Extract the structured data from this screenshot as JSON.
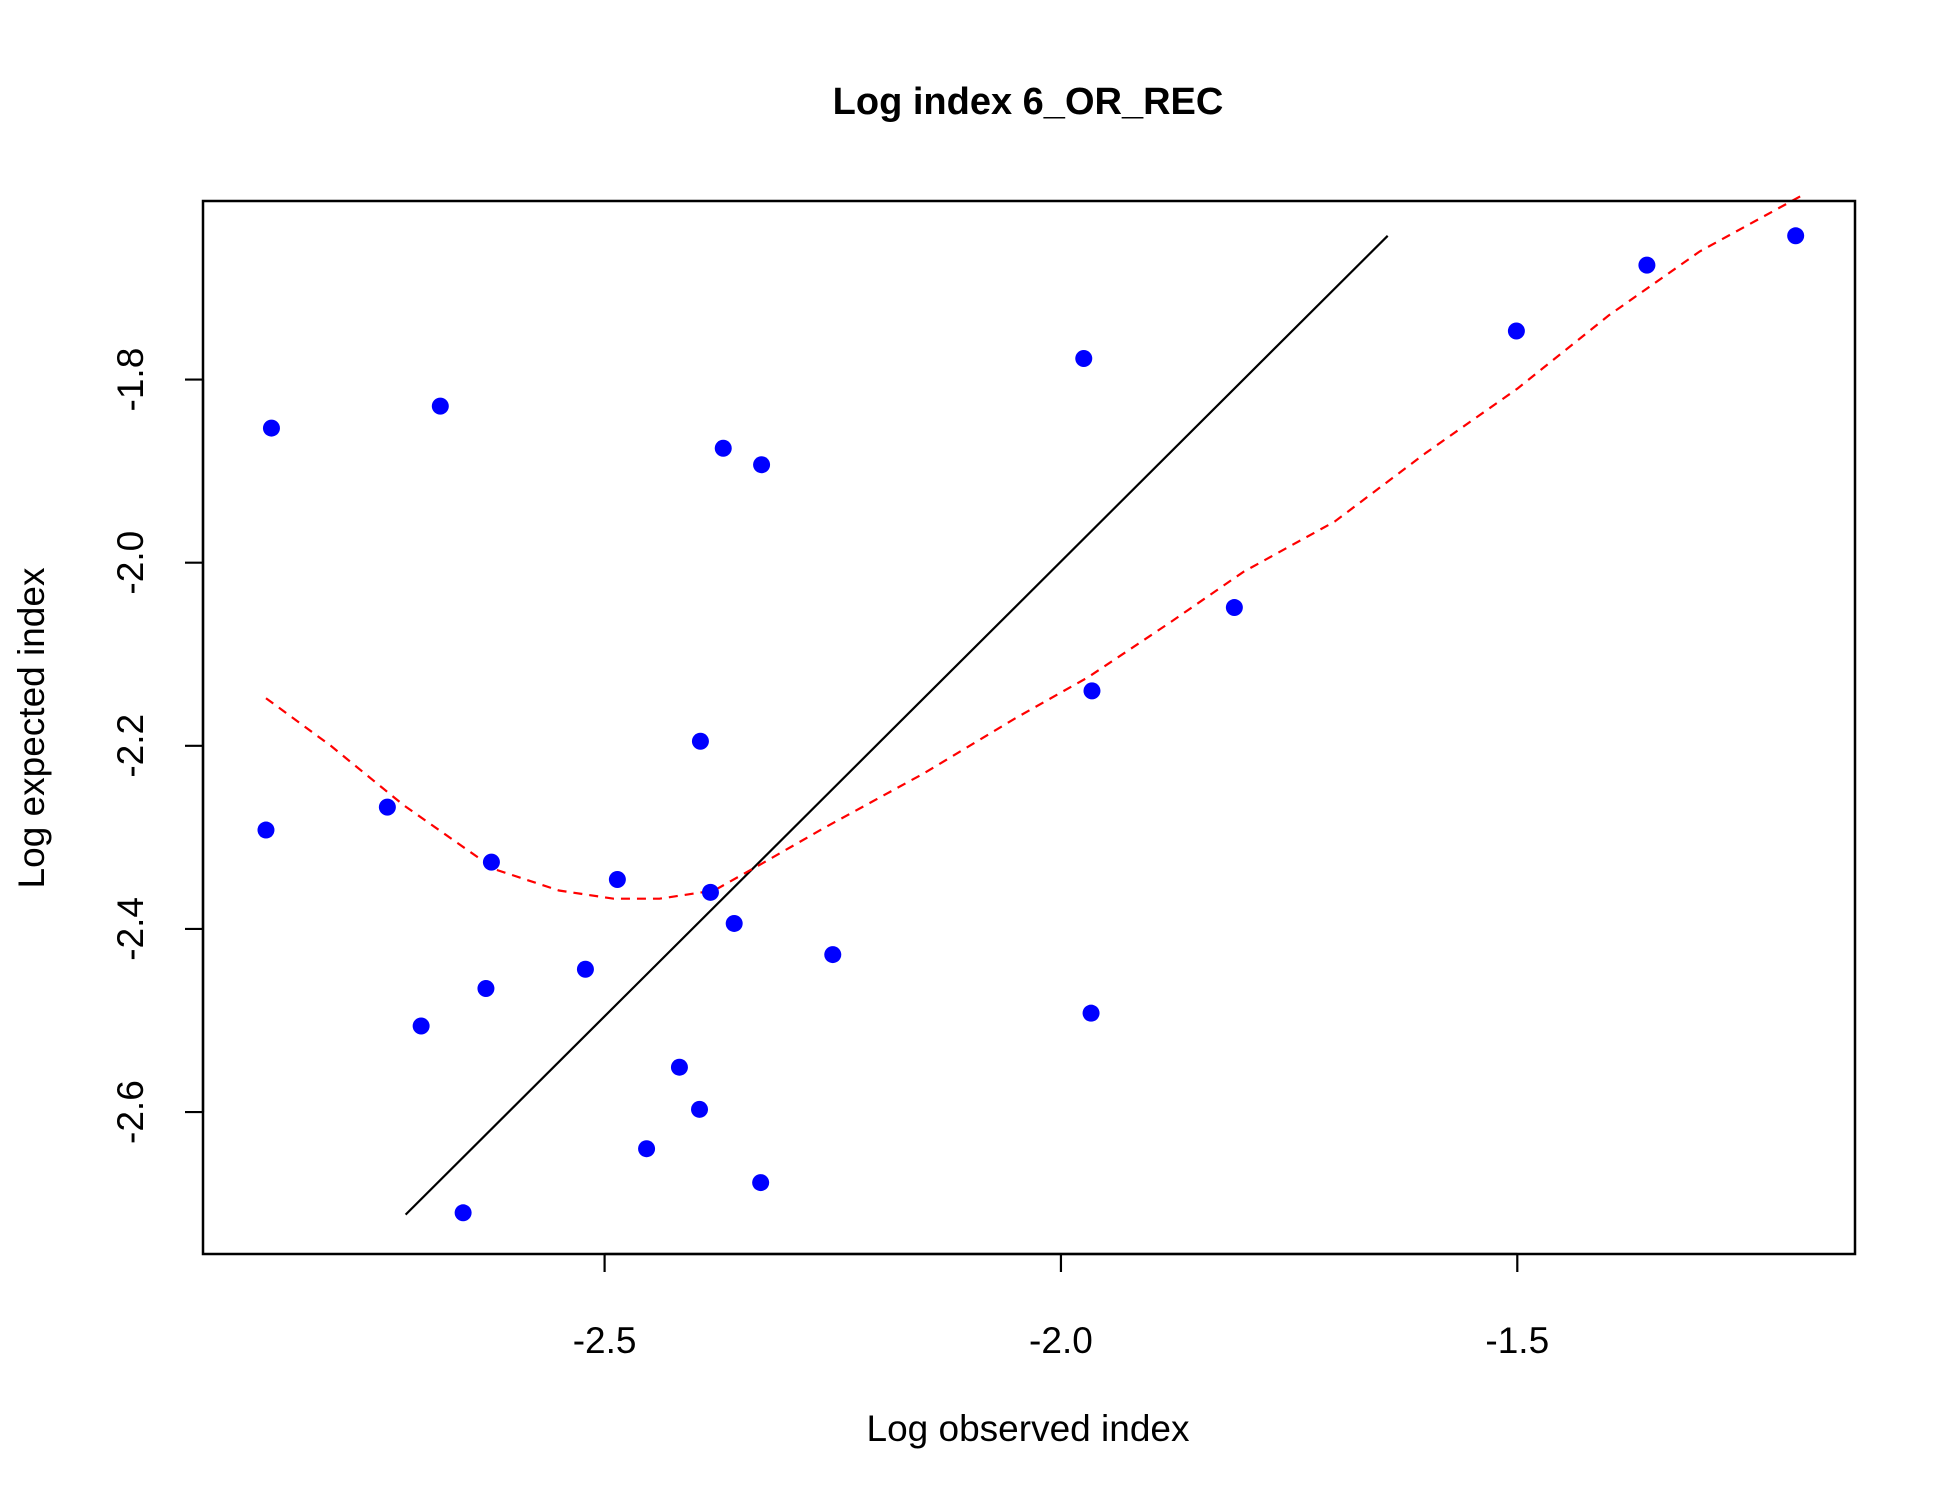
{
  "chart_data": {
    "type": "scatter",
    "title": "Log index 6_OR_REC",
    "xlabel": "Log observed index",
    "ylabel": "Log expected index",
    "xlim": [
      -2.94,
      -1.13
    ],
    "ylim": [
      -2.755,
      -1.605
    ],
    "x_ticks": [
      -2.5,
      -2.0,
      -1.5
    ],
    "x_tick_labels": [
      "-2.5",
      "-2.0",
      "-1.5"
    ],
    "y_ticks": [
      -2.6,
      -2.4,
      -2.2,
      -2.0,
      -1.8
    ],
    "y_tick_labels": [
      "-2.6",
      "-2.4",
      "-2.2",
      "-2.0",
      "-1.8"
    ],
    "grid": false,
    "legend": "none",
    "point_color": "#0000FF",
    "points": [
      {
        "x": -2.865,
        "y": -1.853
      },
      {
        "x": -2.68,
        "y": -1.829
      },
      {
        "x": -2.37,
        "y": -1.875
      },
      {
        "x": -2.328,
        "y": -1.893
      },
      {
        "x": -1.975,
        "y": -1.777
      },
      {
        "x": -1.501,
        "y": -1.747
      },
      {
        "x": -1.358,
        "y": -1.675
      },
      {
        "x": -1.195,
        "y": -1.643
      },
      {
        "x": -1.81,
        "y": -2.049
      },
      {
        "x": -1.966,
        "y": -2.14
      },
      {
        "x": -2.395,
        "y": -2.195
      },
      {
        "x": -2.871,
        "y": -2.292
      },
      {
        "x": -2.738,
        "y": -2.267
      },
      {
        "x": -2.624,
        "y": -2.327
      },
      {
        "x": -2.486,
        "y": -2.346
      },
      {
        "x": -2.384,
        "y": -2.36
      },
      {
        "x": -2.358,
        "y": -2.394
      },
      {
        "x": -2.25,
        "y": -2.428
      },
      {
        "x": -2.521,
        "y": -2.444
      },
      {
        "x": -2.63,
        "y": -2.465
      },
      {
        "x": -2.701,
        "y": -2.506
      },
      {
        "x": -1.967,
        "y": -2.492
      },
      {
        "x": -2.418,
        "y": -2.551
      },
      {
        "x": -2.396,
        "y": -2.597
      },
      {
        "x": -2.454,
        "y": -2.64
      },
      {
        "x": -2.329,
        "y": -2.677
      },
      {
        "x": -2.655,
        "y": -2.71
      }
    ],
    "identity_line": {
      "color": "#000000",
      "x": [
        -2.718,
        -1.642
      ],
      "y": [
        -2.712,
        -1.643
      ]
    },
    "smooth_line": {
      "color": "#FF0000",
      "style": "dashed",
      "x": [
        -2.871,
        -2.8,
        -2.72,
        -2.62,
        -2.55,
        -2.49,
        -2.44,
        -2.38,
        -2.33,
        -2.26,
        -2.15,
        -2.05,
        -1.97,
        -1.88,
        -1.8,
        -1.7,
        -1.6,
        -1.5,
        -1.4,
        -1.3,
        -1.19
      ],
      "y": [
        -2.148,
        -2.2,
        -2.265,
        -2.335,
        -2.358,
        -2.367,
        -2.367,
        -2.358,
        -2.33,
        -2.29,
        -2.23,
        -2.17,
        -2.125,
        -2.065,
        -2.01,
        -1.955,
        -1.88,
        -1.81,
        -1.73,
        -1.66,
        -1.6
      ]
    }
  }
}
